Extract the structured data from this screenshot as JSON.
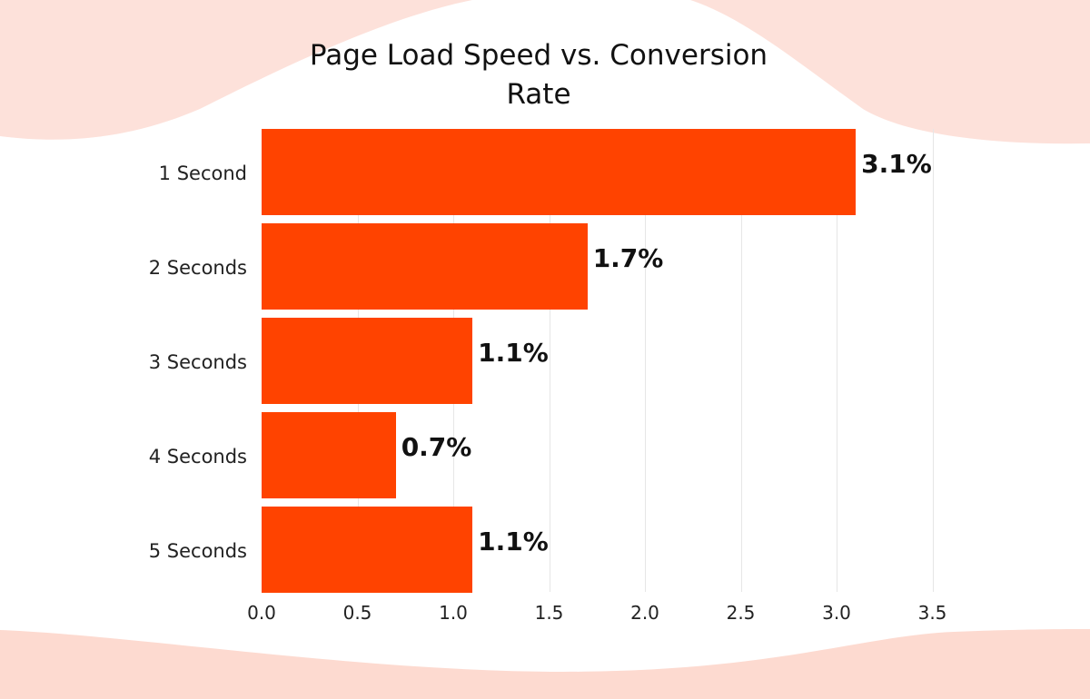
{
  "chart_data": {
    "type": "bar",
    "orientation": "horizontal",
    "title": "Page Load Speed vs. Conversion Rate",
    "title_lines": [
      "Page Load Speed vs. Conversion",
      "Rate"
    ],
    "categories": [
      "1 Second",
      "2 Seconds",
      "3 Seconds",
      "4 Seconds",
      "5 Seconds"
    ],
    "values": [
      3.1,
      1.7,
      1.1,
      0.7,
      1.1
    ],
    "data_labels": [
      "3.1%",
      "1.7%",
      "1.1%",
      "0.7%",
      "1.1%"
    ],
    "xlabel": "",
    "ylabel": "",
    "xlim": [
      0,
      3.5
    ],
    "x_ticks": [
      "0.0",
      "0.5",
      "1.0",
      "1.5",
      "2.0",
      "2.5",
      "3.0",
      "3.5"
    ],
    "grid": true,
    "legend": null,
    "colors": {
      "bar": "#ff4300",
      "background_wave": "#fde0d9",
      "text": "#111111"
    }
  }
}
